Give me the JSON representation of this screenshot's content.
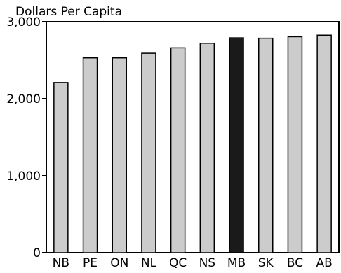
{
  "chart_data": {
    "type": "bar",
    "ylabel": "Dollars Per Capita",
    "categories": [
      "NB",
      "PE",
      "ON",
      "NL",
      "QC",
      "NS",
      "MB",
      "SK",
      "BC",
      "AB"
    ],
    "values": [
      2210,
      2530,
      2530,
      2590,
      2660,
      2720,
      2790,
      2785,
      2805,
      2825
    ],
    "highlight": "MB",
    "ylim": [
      0,
      3000
    ],
    "yticks": [
      0,
      1000,
      2000,
      3000
    ],
    "ytick_labels": [
      "0",
      "1,000",
      "2,000",
      "3,000"
    ],
    "grid": false,
    "legend": "none",
    "colors": {
      "bar": "#cccccc",
      "highlight": "#1a1a1a",
      "stroke": "#000000"
    }
  }
}
